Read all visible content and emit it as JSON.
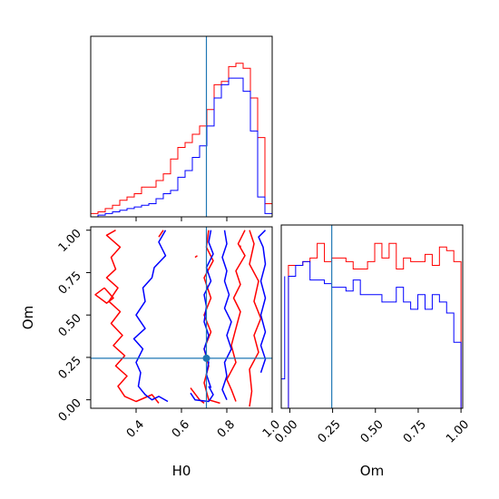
{
  "chart_data": {
    "type": "corner",
    "parameters": [
      "H0",
      "Om"
    ],
    "truths": {
      "H0": 0.71,
      "Om": 0.245
    },
    "colors": {
      "run_a": "#ff0000",
      "run_b": "#0000ff",
      "truth": "#1f77b4"
    },
    "panels": {
      "h0_hist": {
        "type": "histogram",
        "xlim": [
          0.2,
          1.0
        ],
        "bin_edges": [
          0.2,
          0.232,
          0.264,
          0.296,
          0.328,
          0.36,
          0.392,
          0.424,
          0.456,
          0.488,
          0.52,
          0.552,
          0.584,
          0.616,
          0.648,
          0.68,
          0.712,
          0.744,
          0.776,
          0.808,
          0.84,
          0.872,
          0.904,
          0.936,
          0.968,
          1.0
        ],
        "series": [
          {
            "color": "#ff0000",
            "values": [
              2,
              3,
              5,
              7,
              10,
              12,
              14,
              18,
              18,
              22,
              26,
              35,
              42,
              45,
              50,
              55,
              65,
              80,
              82,
              91,
              93,
              90,
              72,
              48,
              8
            ]
          },
          {
            "color": "#0000ff",
            "values": [
              0,
              1,
              2,
              3,
              4,
              5,
              6,
              7,
              8,
              11,
              14,
              16,
              24,
              28,
              36,
              43,
              55,
              72,
              80,
              84,
              84,
              76,
              52,
              12,
              2
            ]
          }
        ]
      },
      "om_hist": {
        "type": "histogram",
        "xlim": [
          -0.05,
          1.01
        ],
        "x_ticks": [
          "0.00",
          "0.25",
          "0.50",
          "0.75",
          "1.00"
        ],
        "bin_edges": [
          -0.05,
          -0.008,
          0.034,
          0.076,
          0.118,
          0.16,
          0.202,
          0.244,
          0.286,
          0.328,
          0.37,
          0.412,
          0.454,
          0.496,
          0.538,
          0.58,
          0.622,
          0.664,
          0.706,
          0.748,
          0.79,
          0.832,
          0.874,
          0.916,
          0.958,
          1.0
        ],
        "series": [
          {
            "color": "#ff0000",
            "values": [
              0,
              78,
              78,
              80,
              82,
              90,
              80,
              82,
              82,
              80,
              76,
              76,
              80,
              90,
              82,
              90,
              76,
              82,
              80,
              80,
              84,
              78,
              88,
              86,
              80
            ]
          },
          {
            "color": "#0000ff",
            "values": [
              0,
              72,
              78,
              80,
              70,
              70,
              68,
              66,
              66,
              64,
              70,
              62,
              62,
              62,
              58,
              58,
              66,
              58,
              54,
              62,
              54,
              62,
              58,
              52,
              36
            ]
          }
        ],
        "extra_left_bin": {
          "color": "#0000ff",
          "x": [
            -0.05,
            -0.03
          ],
          "value": 16
        }
      },
      "joint": {
        "type": "contour",
        "xlabel": "H0",
        "ylabel": "Om",
        "xlim": [
          0.2,
          1.0
        ],
        "ylim": [
          -0.05,
          1.02
        ],
        "x_ticks": [
          "0.4",
          "0.6",
          "0.8",
          "1.0"
        ],
        "y_ticks": [
          "0.00",
          "0.25",
          "0.50",
          "0.75",
          "1.00"
        ],
        "red_contours": [
          [
            [
              0.31,
              1.0
            ],
            [
              0.27,
              0.97
            ],
            [
              0.33,
              0.9
            ],
            [
              0.29,
              0.84
            ],
            [
              0.31,
              0.77
            ],
            [
              0.27,
              0.72
            ],
            [
              0.32,
              0.66
            ],
            [
              0.28,
              0.58
            ],
            [
              0.33,
              0.52
            ],
            [
              0.29,
              0.45
            ],
            [
              0.34,
              0.38
            ],
            [
              0.3,
              0.32
            ],
            [
              0.35,
              0.26
            ],
            [
              0.31,
              0.2
            ],
            [
              0.36,
              0.14
            ],
            [
              0.32,
              0.08
            ],
            [
              0.35,
              0.02
            ],
            [
              0.4,
              -0.01
            ],
            [
              0.47,
              0.03
            ],
            [
              0.5,
              -0.02
            ]
          ],
          [
            [
              0.26,
              0.66
            ],
            [
              0.22,
              0.62
            ],
            [
              0.27,
              0.57
            ],
            [
              0.3,
              0.6
            ],
            [
              0.26,
              0.66
            ]
          ],
          [
            [
              0.52,
              1.0
            ],
            [
              0.5,
              0.96
            ]
          ],
          [
            [
              0.66,
              0.84
            ],
            [
              0.67,
              0.85
            ]
          ],
          [
            [
              0.72,
              1.0
            ],
            [
              0.71,
              0.9
            ],
            [
              0.74,
              0.82
            ],
            [
              0.7,
              0.72
            ],
            [
              0.73,
              0.6
            ],
            [
              0.7,
              0.5
            ],
            [
              0.73,
              0.4
            ],
            [
              0.7,
              0.3
            ],
            [
              0.72,
              0.2
            ],
            [
              0.7,
              0.1
            ],
            [
              0.72,
              0.0
            ],
            [
              0.77,
              -0.02
            ]
          ],
          [
            [
              0.88,
              1.0
            ],
            [
              0.85,
              0.92
            ],
            [
              0.88,
              0.85
            ],
            [
              0.84,
              0.76
            ],
            [
              0.86,
              0.68
            ],
            [
              0.83,
              0.6
            ],
            [
              0.86,
              0.52
            ],
            [
              0.84,
              0.42
            ],
            [
              0.82,
              0.32
            ],
            [
              0.84,
              0.22
            ],
            [
              0.8,
              0.12
            ],
            [
              0.82,
              0.06
            ],
            [
              0.84,
              -0.01
            ]
          ],
          [
            [
              0.9,
              1.0
            ],
            [
              0.92,
              0.92
            ],
            [
              0.9,
              0.8
            ],
            [
              0.94,
              0.7
            ],
            [
              0.92,
              0.58
            ],
            [
              0.95,
              0.48
            ],
            [
              0.92,
              0.38
            ],
            [
              0.94,
              0.28
            ],
            [
              0.9,
              0.18
            ],
            [
              0.91,
              0.05
            ],
            [
              0.9,
              -0.04
            ]
          ],
          [
            [
              0.64,
              0.07
            ],
            [
              0.68,
              0.0
            ],
            [
              0.7,
              -0.02
            ]
          ],
          [
            [
              0.86,
              0.9
            ],
            [
              0.86,
              0.91
            ]
          ]
        ],
        "blue_contours": [
          [
            [
              0.53,
              1.0
            ],
            [
              0.5,
              0.93
            ],
            [
              0.53,
              0.85
            ],
            [
              0.48,
              0.78
            ],
            [
              0.47,
              0.72
            ],
            [
              0.43,
              0.66
            ],
            [
              0.44,
              0.58
            ],
            [
              0.4,
              0.5
            ],
            [
              0.44,
              0.42
            ],
            [
              0.39,
              0.36
            ],
            [
              0.43,
              0.3
            ],
            [
              0.4,
              0.22
            ],
            [
              0.42,
              0.16
            ],
            [
              0.41,
              0.08
            ],
            [
              0.44,
              0.03
            ],
            [
              0.47,
              0.0
            ],
            [
              0.5,
              0.02
            ],
            [
              0.54,
              -0.01
            ]
          ],
          [
            [
              0.64,
              0.04
            ],
            [
              0.66,
              0.0
            ],
            [
              0.72,
              -0.01
            ],
            [
              0.74,
              0.03
            ],
            [
              0.72,
              0.08
            ]
          ],
          [
            [
              0.73,
              1.0
            ],
            [
              0.72,
              0.93
            ],
            [
              0.74,
              0.86
            ],
            [
              0.71,
              0.78
            ],
            [
              0.73,
              0.7
            ],
            [
              0.7,
              0.62
            ],
            [
              0.71,
              0.55
            ],
            [
              0.7,
              0.46
            ],
            [
              0.72,
              0.38
            ],
            [
              0.7,
              0.3
            ],
            [
              0.72,
              0.22
            ],
            [
              0.71,
              0.15
            ],
            [
              0.73,
              0.07
            ]
          ],
          [
            [
              0.79,
              1.0
            ],
            [
              0.8,
              0.92
            ],
            [
              0.78,
              0.84
            ],
            [
              0.8,
              0.76
            ],
            [
              0.79,
              0.7
            ],
            [
              0.81,
              0.62
            ],
            [
              0.79,
              0.54
            ],
            [
              0.82,
              0.46
            ],
            [
              0.8,
              0.38
            ],
            [
              0.82,
              0.3
            ],
            [
              0.79,
              0.22
            ],
            [
              0.8,
              0.14
            ],
            [
              0.78,
              0.06
            ],
            [
              0.8,
              0.0
            ]
          ],
          [
            [
              0.97,
              1.0
            ],
            [
              0.94,
              0.96
            ],
            [
              0.96,
              0.9
            ],
            [
              0.97,
              0.8
            ],
            [
              0.95,
              0.7
            ],
            [
              0.97,
              0.6
            ],
            [
              0.95,
              0.5
            ],
            [
              0.97,
              0.4
            ],
            [
              0.95,
              0.32
            ],
            [
              0.97,
              0.24
            ],
            [
              0.95,
              0.16
            ]
          ]
        ],
        "truth_point": {
          "x": 0.71,
          "y": 0.245
        }
      }
    }
  }
}
